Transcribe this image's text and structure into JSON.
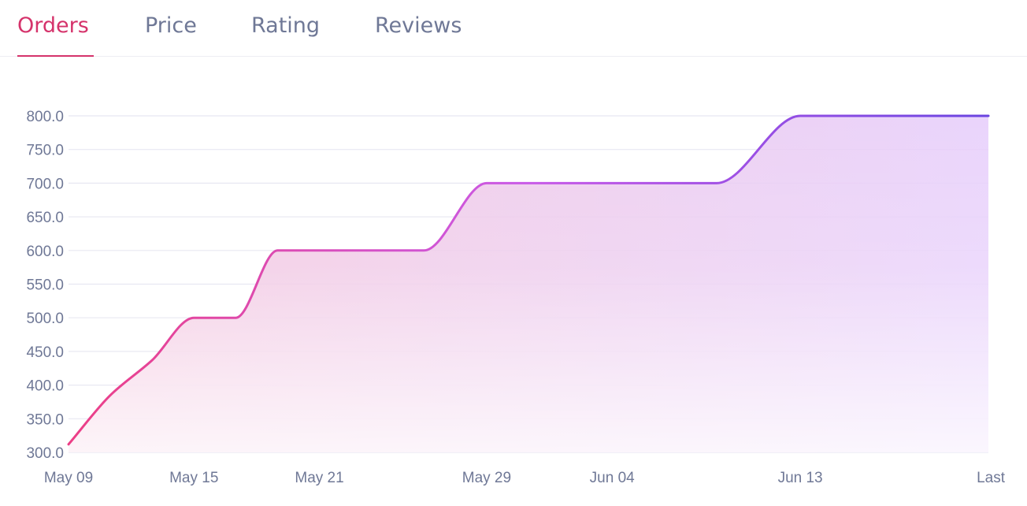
{
  "tabs": [
    {
      "label": "Orders",
      "active": true
    },
    {
      "label": "Price",
      "active": false
    },
    {
      "label": "Rating",
      "active": false
    },
    {
      "label": "Reviews",
      "active": false
    }
  ],
  "colors": {
    "active_tab": "#d5336b",
    "inactive_tab": "#6f7896",
    "line_start": "#ec3f86",
    "line_mid": "#c95ae8",
    "line_end": "#6a44e0",
    "grid": "#e8e8f2",
    "axis_text": "#6f7896"
  },
  "chart_data": {
    "type": "area",
    "title": "",
    "xlabel": "",
    "ylabel": "",
    "x_tick_labels": [
      "May 09",
      "May 15",
      "May 21",
      "May 29",
      "Jun 04",
      "Jun 13",
      "Last"
    ],
    "y_tick_labels": [
      "800.0",
      "750.0",
      "700.0",
      "650.0",
      "600.0",
      "550.0",
      "500.0",
      "450.0",
      "400.0",
      "350.0",
      "300.0"
    ],
    "ylim": [
      300,
      800
    ],
    "grid": true,
    "legend": "none",
    "curve": "smooth",
    "points": [
      {
        "x": "May 09",
        "y": 312
      },
      {
        "x": "May 11",
        "y": 385
      },
      {
        "x": "May 13",
        "y": 437
      },
      {
        "x": "May 15",
        "y": 500
      },
      {
        "x": "May 17",
        "y": 500
      },
      {
        "x": "May 19",
        "y": 600
      },
      {
        "x": "May 26",
        "y": 600
      },
      {
        "x": "May 29",
        "y": 700
      },
      {
        "x": "Jun 09",
        "y": 700
      },
      {
        "x": "Jun 13",
        "y": 800
      },
      {
        "x": "Last",
        "y": 800
      }
    ]
  }
}
